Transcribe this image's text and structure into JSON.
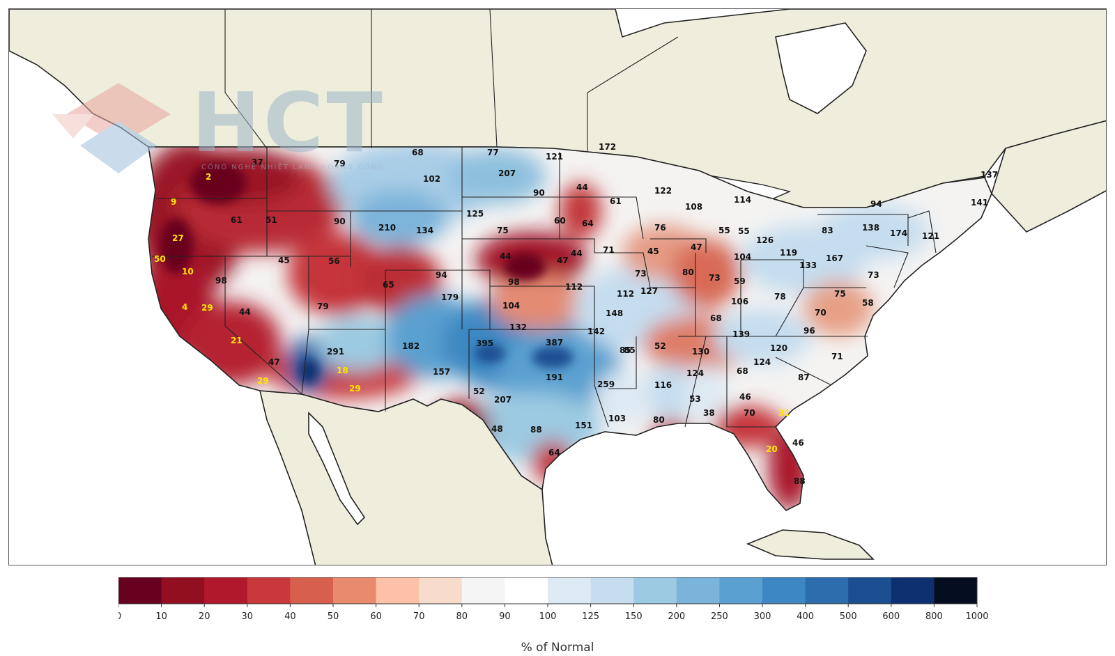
{
  "watermark": {
    "brand": "HCT",
    "subtitle": "CÔNG NGHỆ NHIỆT LẠNH HOÀNG ĐÔNG"
  },
  "colors": {
    "land": "#efeedc",
    "water": "#ffffff",
    "border": "#222222",
    "label_normal": "#111111",
    "label_low": "#ffe600"
  },
  "colorbar": {
    "title": "% of Normal",
    "ticks": [
      "0",
      "10",
      "20",
      "30",
      "40",
      "50",
      "60",
      "70",
      "80",
      "90",
      "100",
      "125",
      "150",
      "200",
      "250",
      "300",
      "400",
      "500",
      "600",
      "800",
      "1000"
    ],
    "colors": [
      "#67001f",
      "#920e21",
      "#b2182b",
      "#c9393b",
      "#d6604d",
      "#e88a6d",
      "#fbc2a7",
      "#f7dccc",
      "#f5f5f5",
      "#ffffff",
      "#deeaf3",
      "#c5ddef",
      "#9ccae2",
      "#7bb4da",
      "#5aa0d0",
      "#3d88c2",
      "#2c6dad",
      "#1b4f92",
      "#0d3170",
      "#050e20"
    ]
  },
  "labels": [
    {
      "t": "37",
      "c": "n"
    },
    {
      "t": "79",
      "c": "n"
    },
    {
      "t": "68",
      "c": "n"
    },
    {
      "t": "77",
      "c": "n"
    },
    {
      "t": "121",
      "c": "n"
    },
    {
      "t": "172",
      "c": "n"
    },
    {
      "t": "2",
      "c": "y"
    },
    {
      "t": "102",
      "c": "n"
    },
    {
      "t": "207",
      "c": "n"
    },
    {
      "t": "90",
      "c": "n"
    },
    {
      "t": "44",
      "c": "n"
    },
    {
      "t": "61",
      "c": "n"
    },
    {
      "t": "122",
      "c": "n"
    },
    {
      "t": "108",
      "c": "n"
    },
    {
      "t": "114",
      "c": "n"
    },
    {
      "t": "137",
      "c": "n"
    },
    {
      "t": "94",
      "c": "n"
    },
    {
      "t": "55",
      "c": "n"
    },
    {
      "t": "141",
      "c": "n"
    },
    {
      "t": "9",
      "c": "y"
    },
    {
      "t": "61",
      "c": "n"
    },
    {
      "t": "51",
      "c": "n"
    },
    {
      "t": "90",
      "c": "n"
    },
    {
      "t": "210",
      "c": "n"
    },
    {
      "t": "134",
      "c": "n"
    },
    {
      "t": "125",
      "c": "n"
    },
    {
      "t": "75",
      "c": "n"
    },
    {
      "t": "60",
      "c": "n"
    },
    {
      "t": "64",
      "c": "n"
    },
    {
      "t": "76",
      "c": "n"
    },
    {
      "t": "55",
      "c": "n"
    },
    {
      "t": "126",
      "c": "n"
    },
    {
      "t": "119",
      "c": "n"
    },
    {
      "t": "83",
      "c": "n"
    },
    {
      "t": "138",
      "c": "n"
    },
    {
      "t": "174",
      "c": "n"
    },
    {
      "t": "121",
      "c": "n"
    },
    {
      "t": "27",
      "c": "y"
    },
    {
      "t": "45",
      "c": "n"
    },
    {
      "t": "56",
      "c": "n"
    },
    {
      "t": "44",
      "c": "n"
    },
    {
      "t": "47",
      "c": "n"
    },
    {
      "t": "44",
      "c": "n"
    },
    {
      "t": "71",
      "c": "n"
    },
    {
      "t": "45",
      "c": "n"
    },
    {
      "t": "47",
      "c": "n"
    },
    {
      "t": "104",
      "c": "n"
    },
    {
      "t": "133",
      "c": "n"
    },
    {
      "t": "167",
      "c": "n"
    },
    {
      "t": "50",
      "c": "y"
    },
    {
      "t": "10",
      "c": "y"
    },
    {
      "t": "98",
      "c": "n"
    },
    {
      "t": "65",
      "c": "n"
    },
    {
      "t": "94",
      "c": "n"
    },
    {
      "t": "98",
      "c": "n"
    },
    {
      "t": "112",
      "c": "n"
    },
    {
      "t": "73",
      "c": "n"
    },
    {
      "t": "80",
      "c": "n"
    },
    {
      "t": "73",
      "c": "n"
    },
    {
      "t": "59",
      "c": "n"
    },
    {
      "t": "75",
      "c": "n"
    },
    {
      "t": "73",
      "c": "n"
    },
    {
      "t": "4",
      "c": "y"
    },
    {
      "t": "29",
      "c": "y"
    },
    {
      "t": "44",
      "c": "n"
    },
    {
      "t": "79",
      "c": "n"
    },
    {
      "t": "179",
      "c": "n"
    },
    {
      "t": "104",
      "c": "n"
    },
    {
      "t": "112",
      "c": "n"
    },
    {
      "t": "127",
      "c": "n"
    },
    {
      "t": "106",
      "c": "n"
    },
    {
      "t": "78",
      "c": "n"
    },
    {
      "t": "58",
      "c": "n"
    },
    {
      "t": "148",
      "c": "n"
    },
    {
      "t": "68",
      "c": "n"
    },
    {
      "t": "70",
      "c": "n"
    },
    {
      "t": "132",
      "c": "n"
    },
    {
      "t": "142",
      "c": "n"
    },
    {
      "t": "85",
      "c": "n"
    },
    {
      "t": "139",
      "c": "n"
    },
    {
      "t": "96",
      "c": "n"
    },
    {
      "t": "21",
      "c": "y"
    },
    {
      "t": "291",
      "c": "n"
    },
    {
      "t": "182",
      "c": "n"
    },
    {
      "t": "395",
      "c": "n"
    },
    {
      "t": "387",
      "c": "n"
    },
    {
      "t": "85",
      "c": "n"
    },
    {
      "t": "52",
      "c": "n"
    },
    {
      "t": "130",
      "c": "n"
    },
    {
      "t": "120",
      "c": "n"
    },
    {
      "t": "71",
      "c": "n"
    },
    {
      "t": "47",
      "c": "n"
    },
    {
      "t": "18",
      "c": "y"
    },
    {
      "t": "157",
      "c": "n"
    },
    {
      "t": "124",
      "c": "n"
    },
    {
      "t": "124",
      "c": "n"
    },
    {
      "t": "68",
      "c": "n"
    },
    {
      "t": "29",
      "c": "y"
    },
    {
      "t": "191",
      "c": "n"
    },
    {
      "t": "259",
      "c": "n"
    },
    {
      "t": "116",
      "c": "n"
    },
    {
      "t": "87",
      "c": "n"
    },
    {
      "t": "29",
      "c": "y"
    },
    {
      "t": "52",
      "c": "n"
    },
    {
      "t": "207",
      "c": "n"
    },
    {
      "t": "53",
      "c": "n"
    },
    {
      "t": "46",
      "c": "n"
    },
    {
      "t": "38",
      "c": "n"
    },
    {
      "t": "70",
      "c": "n"
    },
    {
      "t": "31",
      "c": "y"
    },
    {
      "t": "48",
      "c": "n"
    },
    {
      "t": "88",
      "c": "n"
    },
    {
      "t": "151",
      "c": "n"
    },
    {
      "t": "103",
      "c": "n"
    },
    {
      "t": "80",
      "c": "n"
    },
    {
      "t": "46",
      "c": "n"
    },
    {
      "t": "20",
      "c": "y"
    },
    {
      "t": "64",
      "c": "n"
    },
    {
      "t": "88",
      "c": "n"
    }
  ]
}
